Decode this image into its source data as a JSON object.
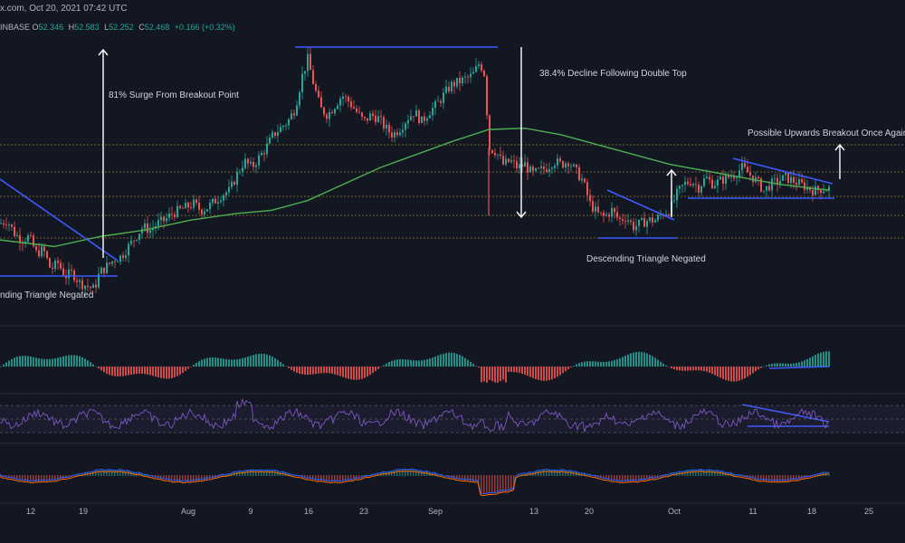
{
  "header": {
    "source_date": "x.com, Oct 20, 2021 07:42 UTC",
    "exchange": "INBASE",
    "ohlc": [
      {
        "key": "O",
        "value": "52.346"
      },
      {
        "key": "H",
        "value": "52.583"
      },
      {
        "key": "L",
        "value": "52.252"
      },
      {
        "key": "C",
        "value": "52.468"
      }
    ],
    "change": "+0.166 (+0.32%)"
  },
  "colors": {
    "background": "#131722",
    "up": "#26a69a",
    "down": "#ef5350",
    "ma": "#4caf50",
    "trendline": "#3d5afe",
    "rsi": "#7e57c2",
    "macd": "#2962ff",
    "signal": "#ff6d00",
    "level": "#c9a227",
    "arrow": "#ffffff"
  },
  "annotations": {
    "surge": "81% Surge From Breakout Point",
    "decline": "38.4% Decline Following Double Top",
    "breakout": "Possible Upwards Breakout Once Again",
    "negated_left": "nding Triangle Negated",
    "negated_right": "Descending Triangle Negated"
  },
  "chart_data": {
    "type": "candlestick",
    "x_ticks": [
      "12",
      "19",
      "Aug",
      "9",
      "16",
      "23",
      "Sep",
      "13",
      "20",
      "Oct",
      "11",
      "18",
      "25"
    ],
    "close_path": [
      [
        0,
        43.5
      ],
      [
        8,
        44.0
      ],
      [
        16,
        42.0
      ],
      [
        24,
        41.0
      ],
      [
        32,
        41.5
      ],
      [
        40,
        39.0
      ],
      [
        48,
        39.5
      ],
      [
        56,
        36.5
      ],
      [
        64,
        37.5
      ],
      [
        72,
        35.5
      ],
      [
        80,
        36.0
      ],
      [
        88,
        34.5
      ],
      [
        96,
        34.0
      ],
      [
        104,
        33.5
      ],
      [
        110,
        36.0
      ],
      [
        118,
        37.0
      ],
      [
        126,
        38.0
      ],
      [
        134,
        38.5
      ],
      [
        142,
        40.0
      ],
      [
        150,
        41.5
      ],
      [
        158,
        43.0
      ],
      [
        166,
        42.5
      ],
      [
        174,
        43.5
      ],
      [
        182,
        44.0
      ],
      [
        190,
        45.0
      ],
      [
        198,
        45.5
      ],
      [
        206,
        46.0
      ],
      [
        214,
        46.5
      ],
      [
        222,
        45.5
      ],
      [
        230,
        46.0
      ],
      [
        238,
        47.0
      ],
      [
        246,
        48.0
      ],
      [
        254,
        48.5
      ],
      [
        262,
        51.0
      ],
      [
        270,
        53.0
      ],
      [
        278,
        52.0
      ],
      [
        286,
        53.5
      ],
      [
        294,
        55.0
      ],
      [
        302,
        57.0
      ],
      [
        310,
        58.0
      ],
      [
        318,
        59.0
      ],
      [
        326,
        61.0
      ],
      [
        334,
        66.0
      ],
      [
        340,
        68.5
      ],
      [
        346,
        65.0
      ],
      [
        354,
        61.0
      ],
      [
        362,
        60.0
      ],
      [
        370,
        61.5
      ],
      [
        378,
        63.0
      ],
      [
        386,
        62.0
      ],
      [
        394,
        60.5
      ],
      [
        402,
        59.0
      ],
      [
        410,
        60.0
      ],
      [
        418,
        59.5
      ],
      [
        426,
        58.0
      ],
      [
        434,
        57.0
      ],
      [
        442,
        58.0
      ],
      [
        450,
        59.5
      ],
      [
        458,
        60.5
      ],
      [
        466,
        59.0
      ],
      [
        474,
        60.5
      ],
      [
        482,
        61.5
      ],
      [
        490,
        63.0
      ],
      [
        498,
        64.5
      ],
      [
        506,
        65.0
      ],
      [
        514,
        65.5
      ],
      [
        522,
        66.0
      ],
      [
        530,
        68.0
      ],
      [
        536,
        66.0
      ],
      [
        540,
        55.0
      ],
      [
        548,
        54.5
      ],
      [
        556,
        52.5
      ],
      [
        564,
        53.0
      ],
      [
        572,
        52.0
      ],
      [
        580,
        52.5
      ],
      [
        588,
        51.0
      ],
      [
        596,
        51.5
      ],
      [
        604,
        52.0
      ],
      [
        612,
        53.0
      ],
      [
        620,
        52.5
      ],
      [
        628,
        53.0
      ],
      [
        636,
        51.5
      ],
      [
        644,
        50.0
      ],
      [
        652,
        46.5
      ],
      [
        660,
        45.0
      ],
      [
        668,
        44.5
      ],
      [
        676,
        45.5
      ],
      [
        684,
        44.0
      ],
      [
        692,
        44.5
      ],
      [
        700,
        43.0
      ],
      [
        708,
        43.5
      ],
      [
        716,
        44.0
      ],
      [
        724,
        44.0
      ],
      [
        732,
        45.0
      ],
      [
        740,
        45.5
      ],
      [
        748,
        48.0
      ],
      [
        756,
        49.5
      ],
      [
        764,
        50.0
      ],
      [
        772,
        49.0
      ],
      [
        780,
        50.5
      ],
      [
        788,
        49.5
      ],
      [
        796,
        50.0
      ],
      [
        804,
        50.5
      ],
      [
        812,
        51.0
      ],
      [
        820,
        52.0
      ],
      [
        828,
        51.0
      ],
      [
        836,
        50.0
      ],
      [
        844,
        48.5
      ],
      [
        852,
        49.5
      ],
      [
        860,
        50.0
      ],
      [
        868,
        50.5
      ],
      [
        876,
        50.0
      ],
      [
        884,
        49.5
      ],
      [
        892,
        49.0
      ],
      [
        900,
        48.5
      ],
      [
        908,
        48.8
      ],
      [
        916,
        48.8
      ]
    ],
    "ma200_path": [
      [
        0,
        41.0
      ],
      [
        60,
        40.0
      ],
      [
        110,
        41.5
      ],
      [
        160,
        42.5
      ],
      [
        210,
        44.0
      ],
      [
        260,
        45.0
      ],
      [
        300,
        45.5
      ],
      [
        340,
        47.0
      ],
      [
        380,
        49.5
      ],
      [
        420,
        52.0
      ],
      [
        460,
        54.0
      ],
      [
        500,
        56.0
      ],
      [
        540,
        57.8
      ],
      [
        580,
        58.0
      ],
      [
        620,
        57.0
      ],
      [
        660,
        55.5
      ],
      [
        700,
        54.0
      ],
      [
        740,
        52.5
      ],
      [
        780,
        51.5
      ],
      [
        820,
        50.5
      ],
      [
        860,
        49.5
      ],
      [
        900,
        48.8
      ],
      [
        916,
        48.6
      ]
    ],
    "rsi_range": [
      0,
      100
    ],
    "macd_range": [
      -3,
      3
    ]
  }
}
